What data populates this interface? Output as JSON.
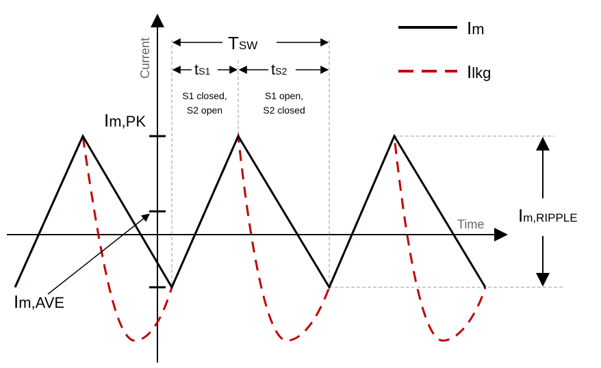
{
  "axes": {
    "y_label": "Current",
    "x_label": "Time"
  },
  "legend": {
    "items": [
      {
        "main": "I",
        "sub": "m",
        "style": "solid",
        "color": "#000000"
      },
      {
        "main": "I",
        "sub": "lkg",
        "style": "dashed",
        "color": "#c00000"
      }
    ]
  },
  "period": {
    "tsw": {
      "main": "T",
      "sub": "SW"
    },
    "ts1": {
      "main": "t",
      "sub": "S1"
    },
    "ts2": {
      "main": "t",
      "sub": "S2"
    }
  },
  "phases": {
    "s1": {
      "line1": "S1 closed,",
      "line2": "S2 open"
    },
    "s2": {
      "line1": "S1 open,",
      "line2": "S2 closed"
    }
  },
  "levels": {
    "peak": {
      "main": "I",
      "sub": "m,PK"
    },
    "average": {
      "main": "I",
      "sub": "m,AVE"
    },
    "ripple": {
      "main": "I",
      "sub": "m,RIPPLE"
    }
  },
  "colors": {
    "magnetizing": "#000000",
    "leakage": "#c00000",
    "axis": "#000000",
    "guide": "#999999"
  }
}
